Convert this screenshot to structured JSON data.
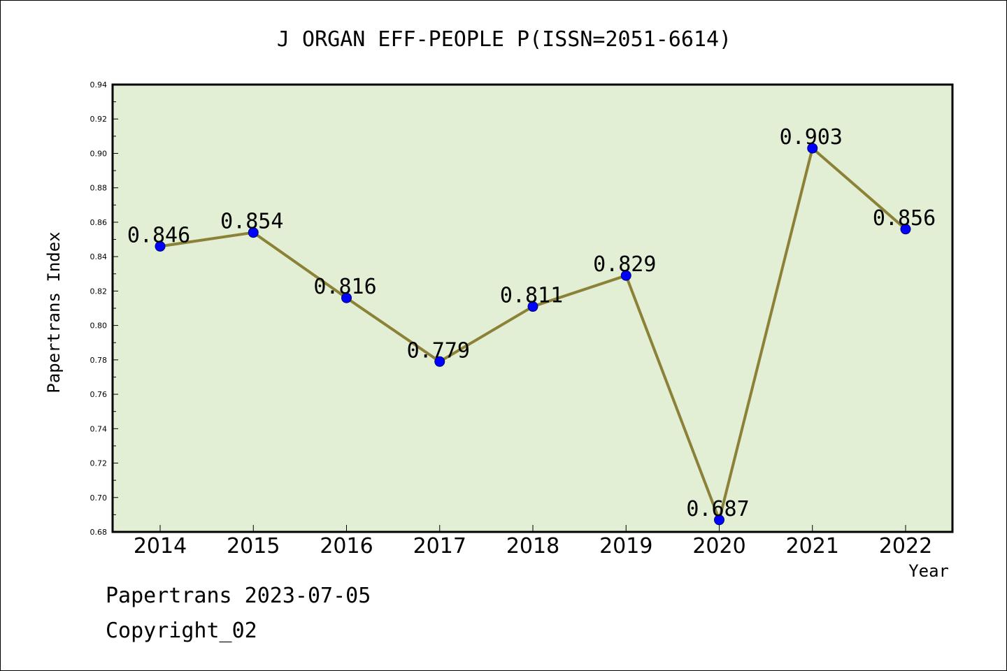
{
  "chart_data": {
    "type": "line",
    "title": "J ORGAN EFF-PEOPLE P(ISSN=2051-6614)",
    "xlabel": "Year",
    "ylabel": "Papertrans Index",
    "categories": [
      "2014",
      "2015",
      "2016",
      "2017",
      "2018",
      "2019",
      "2020",
      "2021",
      "2022"
    ],
    "series": [
      {
        "values": [
          0.846,
          0.854,
          0.816,
          0.779,
          0.811,
          0.829,
          0.687,
          0.903,
          0.856
        ],
        "labels": [
          "0.846",
          "0.854",
          "0.816",
          "0.779",
          "0.811",
          "0.829",
          "0.687",
          "0.903",
          "0.856"
        ]
      }
    ],
    "ylim": [
      0.68,
      0.94
    ],
    "yticks": [
      0.68,
      0.7,
      0.72,
      0.74,
      0.76,
      0.78,
      0.8,
      0.82,
      0.84,
      0.86,
      0.88,
      0.9,
      0.92,
      0.94
    ],
    "ytick_labels": [
      "0.68",
      "0.70",
      "0.72",
      "0.74",
      "0.76",
      "0.78",
      "0.80",
      "0.82",
      "0.84",
      "0.86",
      "0.88",
      "0.90",
      "0.92",
      "0.94"
    ],
    "grid": false,
    "legend": "none",
    "colors": {
      "plot_background": "#e2efd4",
      "line": "#8b8237",
      "marker": "#0000ff"
    }
  },
  "footer": {
    "line1": "Papertrans 2023-07-05",
    "line2": "Copyright_02"
  }
}
